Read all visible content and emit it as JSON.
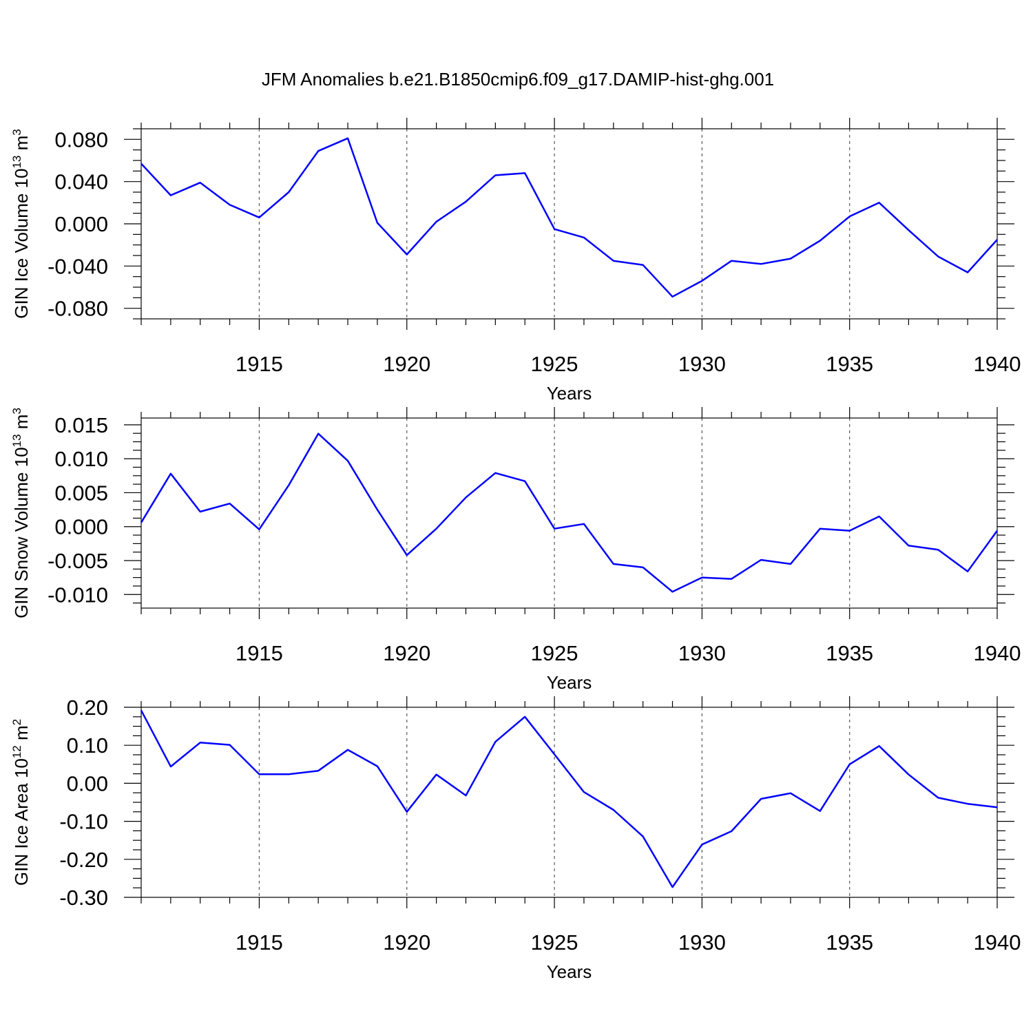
{
  "title": "JFM Anomalies b.e21.B1850cmip6.f09_g17.DAMIP-hist-ghg.001",
  "line_color": "#0000ff",
  "chart_data": [
    {
      "type": "line",
      "ylabel": "GIN Ice Volume 10",
      "ylabel_sup": "13",
      "ylabel_unit": " m",
      "ylabel_unit_sup": "3",
      "xlabel": "Years",
      "xlim": [
        1911,
        1940
      ],
      "ylim": [
        -0.09,
        0.09
      ],
      "yticks": [
        -0.08,
        -0.04,
        0.0,
        0.04,
        0.08
      ],
      "ytick_labels": [
        "-0.080",
        "-0.040",
        "0.000",
        "0.040",
        "0.080"
      ],
      "xticks": [
        1915,
        1920,
        1925,
        1930,
        1935,
        1940
      ],
      "xtick_labels": [
        "1915",
        "1920",
        "1925",
        "1930",
        "1935",
        "1940"
      ],
      "x": [
        1911,
        1912,
        1913,
        1914,
        1915,
        1916,
        1917,
        1918,
        1919,
        1920,
        1921,
        1922,
        1923,
        1924,
        1925,
        1926,
        1927,
        1928,
        1929,
        1930,
        1931,
        1932,
        1933,
        1934,
        1935,
        1936,
        1937,
        1938,
        1939,
        1940
      ],
      "y": [
        0.057,
        0.027,
        0.039,
        0.018,
        0.006,
        0.03,
        0.069,
        0.081,
        0.001,
        -0.029,
        0.002,
        0.021,
        0.046,
        0.048,
        -0.005,
        -0.013,
        -0.035,
        -0.039,
        -0.069,
        -0.054,
        -0.035,
        -0.038,
        -0.033,
        -0.016,
        0.007,
        0.02,
        -0.006,
        -0.031,
        -0.046,
        -0.015
      ]
    },
    {
      "type": "line",
      "ylabel": "GIN Snow Volume 10",
      "ylabel_sup": "13",
      "ylabel_unit": " m",
      "ylabel_unit_sup": "3",
      "xlabel": "Years",
      "xlim": [
        1911,
        1940
      ],
      "ylim": [
        -0.012,
        0.016
      ],
      "yticks": [
        -0.01,
        -0.005,
        0.0,
        0.005,
        0.01,
        0.015
      ],
      "ytick_labels": [
        "-0.010",
        "-0.005",
        "0.000",
        "0.005",
        "0.010",
        "0.015"
      ],
      "xticks": [
        1915,
        1920,
        1925,
        1930,
        1935,
        1940
      ],
      "xtick_labels": [
        "1915",
        "1920",
        "1925",
        "1930",
        "1935",
        "1940"
      ],
      "x": [
        1911,
        1912,
        1913,
        1914,
        1915,
        1916,
        1917,
        1918,
        1919,
        1920,
        1921,
        1922,
        1923,
        1924,
        1925,
        1926,
        1927,
        1928,
        1929,
        1930,
        1931,
        1932,
        1933,
        1934,
        1935,
        1936,
        1937,
        1938,
        1939,
        1940
      ],
      "y": [
        0.0006,
        0.0078,
        0.0022,
        0.0034,
        -0.0004,
        0.0061,
        0.0137,
        0.0097,
        0.0025,
        -0.0042,
        -0.0003,
        0.0043,
        0.0079,
        0.0067,
        -0.0003,
        0.0004,
        -0.0055,
        -0.006,
        -0.0096,
        -0.0075,
        -0.0077,
        -0.0049,
        -0.0055,
        -0.0003,
        -0.0006,
        0.0015,
        -0.0028,
        -0.0034,
        -0.0066,
        -0.0006
      ]
    },
    {
      "type": "line",
      "ylabel": "GIN Ice Area 10",
      "ylabel_sup": "12",
      "ylabel_unit": " m",
      "ylabel_unit_sup": "2",
      "xlabel": "Years",
      "xlim": [
        1911,
        1940
      ],
      "ylim": [
        -0.3,
        0.2
      ],
      "yticks": [
        -0.3,
        -0.2,
        -0.1,
        0.0,
        0.1,
        0.2
      ],
      "ytick_labels": [
        "-0.30",
        "-0.20",
        "-0.10",
        "0.00",
        "0.10",
        "0.20"
      ],
      "xticks": [
        1915,
        1920,
        1925,
        1930,
        1935,
        1940
      ],
      "xtick_labels": [
        "1915",
        "1920",
        "1925",
        "1930",
        "1935",
        "1940"
      ],
      "x": [
        1911,
        1912,
        1913,
        1914,
        1915,
        1916,
        1917,
        1918,
        1919,
        1920,
        1921,
        1922,
        1923,
        1924,
        1925,
        1926,
        1927,
        1928,
        1929,
        1930,
        1931,
        1932,
        1933,
        1934,
        1935,
        1936,
        1937,
        1938,
        1939,
        1940
      ],
      "y": [
        0.192,
        0.044,
        0.107,
        0.101,
        0.024,
        0.024,
        0.033,
        0.088,
        0.045,
        -0.075,
        0.023,
        -0.032,
        0.109,
        0.175,
        0.076,
        -0.023,
        -0.07,
        -0.14,
        -0.273,
        -0.161,
        -0.126,
        -0.041,
        -0.026,
        -0.073,
        0.05,
        0.098,
        0.023,
        -0.038,
        -0.054,
        -0.063
      ]
    }
  ]
}
